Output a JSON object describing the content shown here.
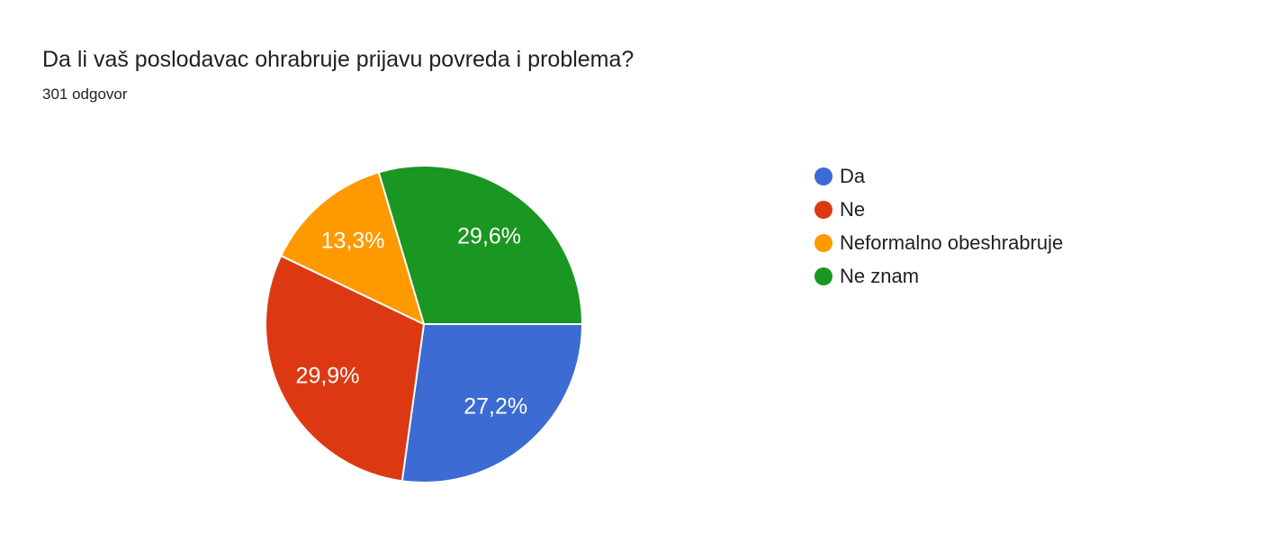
{
  "header": {
    "title": "Da li vaš poslodavac ohrabruje prijavu povreda i problema?",
    "subtitle": "301 odgovor"
  },
  "chart_data": {
    "type": "pie",
    "title": "Da li vaš poslodavac ohrabruje prijavu povreda i problema?",
    "subtitle": "301 odgovor",
    "categories": [
      "Da",
      "Ne",
      "Neformalno obeshrabruje",
      "Ne znam"
    ],
    "values": [
      27.2,
      29.9,
      13.3,
      29.6
    ],
    "percent_labels": [
      "27,2%",
      "29,9%",
      "13,3%",
      "29,6%"
    ],
    "colors": [
      "#3b6bd3",
      "#dc3912",
      "#ff9900",
      "#1a9622"
    ],
    "label_color": "#ffffff",
    "background": "#ffffff",
    "start_angle_deg": 0,
    "direction": "clockwise",
    "legend_position": "right"
  }
}
